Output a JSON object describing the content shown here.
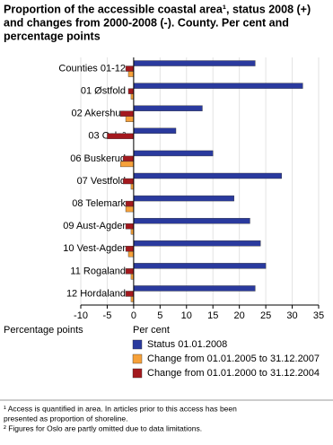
{
  "chart_data": {
    "type": "hbar",
    "title_lines": [
      "Proportion of the accessible coastal area¹, status 2008 (+)",
      "and changes from 2000-2008 (-). County. Per cent and",
      "percentage points"
    ],
    "categories": [
      "Counties 01-12",
      "01 Østfold",
      "02 Akershus",
      "03 Oslo²",
      "06 Buskerud",
      "07 Vestfold",
      "08 Telemark",
      "09 Aust-Agder",
      "10 Vest-Agder",
      "11 Rogaland",
      "12 Hordaland"
    ],
    "series": [
      {
        "name": "Status 01.01.2008",
        "color": "#2a3a9e",
        "values": [
          23,
          32,
          13,
          8,
          15,
          28,
          19,
          22,
          24,
          25,
          23
        ]
      },
      {
        "name": "Change from 01.01.2000 to 31.12.2004",
        "color": "#a3191e",
        "values": [
          -1.5,
          -1,
          -2.5,
          -5,
          -2,
          -2,
          -1.5,
          -1.5,
          -1.5,
          -1.5,
          -1.5
        ]
      },
      {
        "name": "Change from 01.01.2005 to 31.12.2007",
        "color": "#f6a13a",
        "values": [
          -1,
          -0.5,
          -1.5,
          null,
          -2.5,
          -0.5,
          -1.5,
          -0.5,
          -1,
          -0.5,
          -0.5
        ]
      }
    ],
    "legend_order": [
      0,
      2,
      1
    ],
    "xlim": [
      -10,
      35
    ],
    "xticks": [
      -10,
      -5,
      0,
      5,
      10,
      15,
      20,
      25,
      30,
      35
    ],
    "xlabel_left": "Percentage points",
    "xlabel_right": "Per cent",
    "grid": true,
    "footnotes": [
      [
        "¹ Access is quantified in area. In articles prior to this access has been",
        "presented as proportion of shoreline."
      ],
      [
        "² Figures for Oslo are partly omitted due to data limitations."
      ]
    ]
  }
}
